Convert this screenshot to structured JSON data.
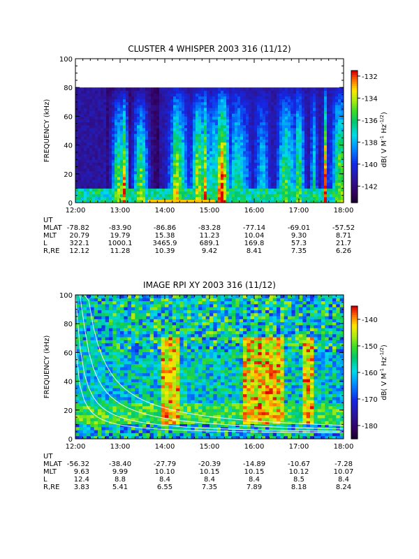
{
  "chart_data": [
    {
      "type": "heatmap",
      "title": "CLUSTER 4 WHISPER 2003 316 (11/12)",
      "ylabel": "FREQUENCY (kHz)",
      "ylim": [
        0,
        100
      ],
      "yticks": [
        "0",
        "20",
        "40",
        "60",
        "80",
        "100"
      ],
      "xticks": [
        "12:00",
        "13:00",
        "14:00",
        "15:00",
        "16:00",
        "17:00",
        "18:00"
      ],
      "data_extent_khz": [
        0,
        80
      ],
      "colorbar": {
        "label": "dB( V M",
        "label_sup": "-1",
        "label_mid": " Hz",
        "label_sup2": "-1/2",
        "label_end": ")",
        "range": [
          -143.5,
          -131.5
        ],
        "ticks": [
          "-132",
          "-134",
          "-136",
          "-138",
          "-140",
          "-142"
        ]
      },
      "ephemeris": [
        {
          "name": "UT",
          "values": [
            "12:00",
            "13:00",
            "14:00",
            "15:00",
            "16:00",
            "17:00",
            "18:00"
          ]
        },
        {
          "name": "MLAT",
          "values": [
            "-78.82",
            "-83.90",
            "-86.86",
            "-83.28",
            "-77.14",
            "-69.01",
            "-57.52"
          ]
        },
        {
          "name": "MLT",
          "values": [
            "20.79",
            "19.79",
            "15.38",
            "11.23",
            "10.04",
            "9.30",
            "8.71"
          ]
        },
        {
          "name": "L",
          "values": [
            "322.1",
            "1000.1",
            "3465.9",
            "689.1",
            "169.8",
            "57.3",
            "21.7"
          ]
        },
        {
          "name": "R,RE",
          "values": [
            "12.12",
            "11.28",
            "10.39",
            "9.42",
            "8.41",
            "7.35",
            "6.26"
          ]
        }
      ]
    },
    {
      "type": "heatmap",
      "title": "IMAGE RPI XY 2003 316 (11/12)",
      "ylabel": "FREQUENCY (kHz)",
      "ylim": [
        0,
        100
      ],
      "yticks": [
        "0",
        "20",
        "40",
        "60",
        "80",
        "100"
      ],
      "xticks": [
        "12:00",
        "13:00",
        "14:00",
        "15:00",
        "16:00",
        "17:00",
        "18:00"
      ],
      "colorbar": {
        "label": "dB( V M",
        "label_sup": "-1",
        "label_mid": " Hz",
        "label_sup2": "-1/2",
        "label_end": ")",
        "range": [
          -185,
          -135
        ],
        "ticks": [
          "-140",
          "-150",
          "-160",
          "-170",
          "-180"
        ]
      },
      "ephemeris": [
        {
          "name": "UT",
          "values": [
            "12:00",
            "13:00",
            "14:00",
            "15:00",
            "16:00",
            "17:00",
            "18:00"
          ]
        },
        {
          "name": "MLAT",
          "values": [
            "-56.32",
            "-38.40",
            "-27.79",
            "-20.39",
            "-14.89",
            "-10.67",
            "-7.28"
          ]
        },
        {
          "name": "MLT",
          "values": [
            "9.63",
            "9.99",
            "10.10",
            "10.15",
            "10.15",
            "10.12",
            "10.07"
          ]
        },
        {
          "name": "L",
          "values": [
            "12.4",
            "8.8",
            "8.4",
            "8.4",
            "8.4",
            "8.5",
            "8.4"
          ]
        },
        {
          "name": "R,RE",
          "values": [
            "3.83",
            "5.41",
            "6.55",
            "7.35",
            "7.89",
            "8.18",
            "8.24"
          ]
        }
      ]
    }
  ]
}
